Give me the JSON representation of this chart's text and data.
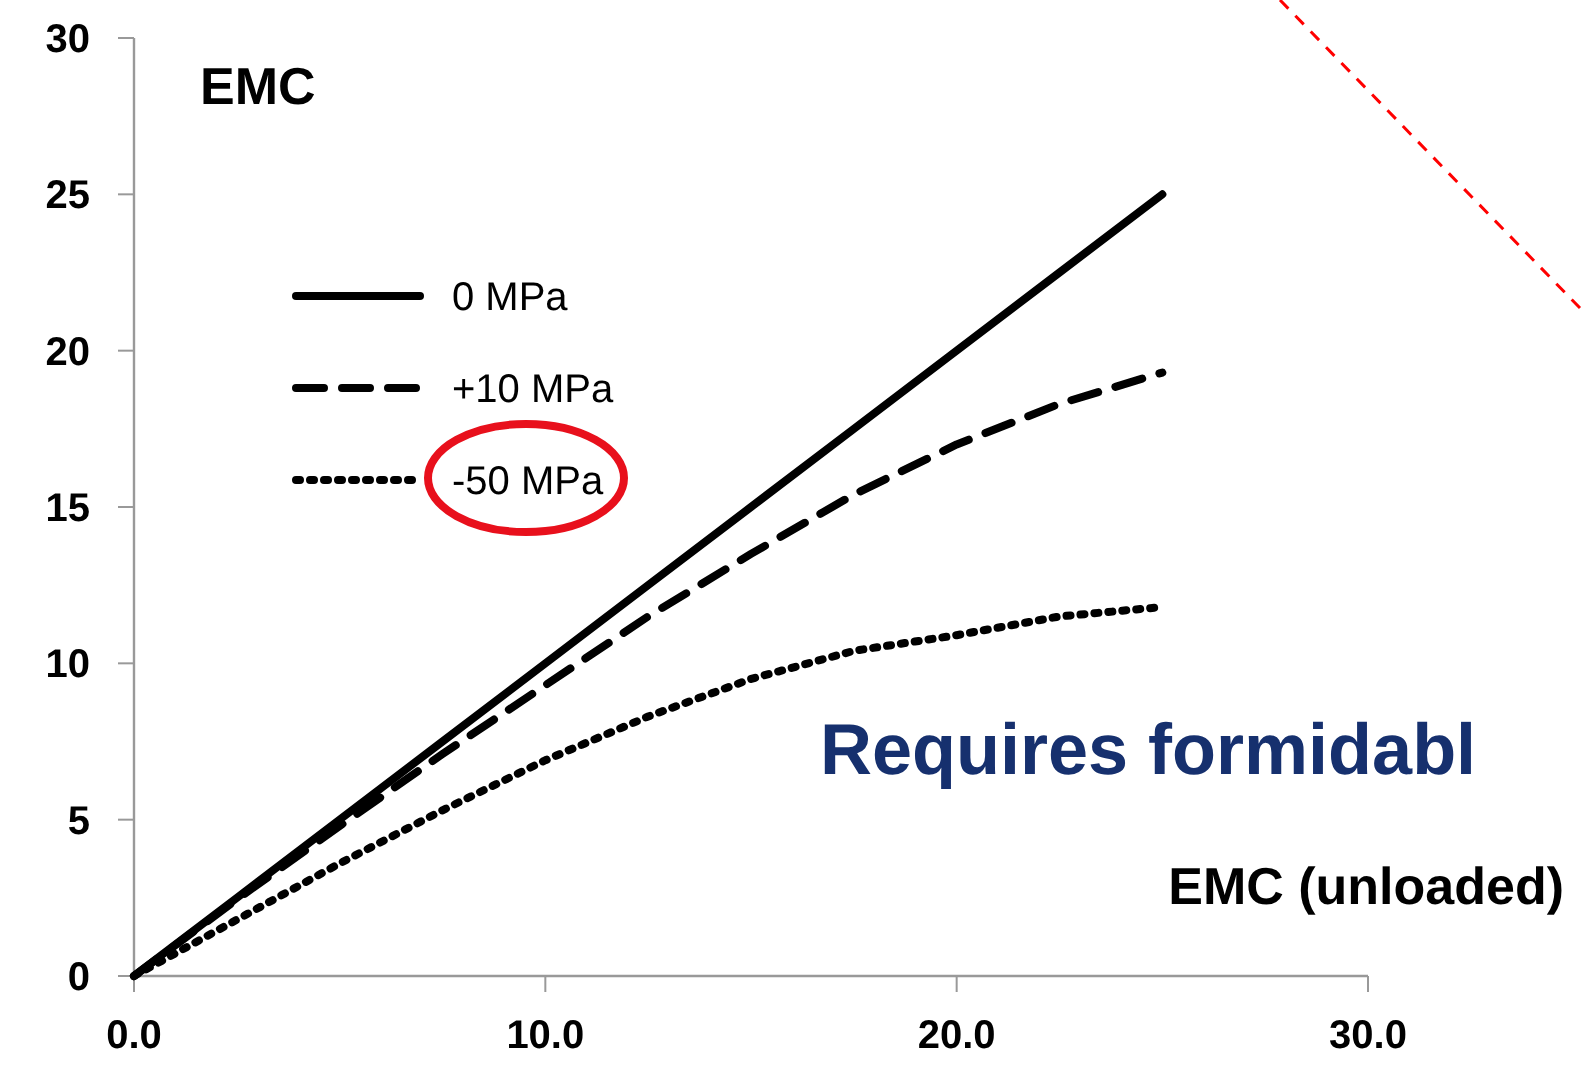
{
  "chart_data": {
    "type": "line",
    "xlabel": "EMC (unloaded)",
    "ylabel": "EMC",
    "annotations": [
      "Requires formidabl"
    ],
    "x": [
      0,
      2.5,
      5,
      7.5,
      10,
      12.5,
      15,
      17.5,
      20,
      22.5,
      25
    ],
    "series": [
      {
        "name": "0 MPa",
        "color": "#000000",
        "line_style": "solid",
        "values": [
          0,
          2.5,
          5,
          7.5,
          10,
          12.5,
          15,
          17.5,
          20,
          22.5,
          25
        ]
      },
      {
        "name": "+10 MPa",
        "color": "#000000",
        "line_style": "dashed",
        "values": [
          0,
          2.45,
          4.8,
          7.1,
          9.3,
          11.5,
          13.5,
          15.4,
          17.0,
          18.3,
          19.3
        ]
      },
      {
        "name": "-50 MPa",
        "color": "#000000",
        "line_style": "dotted",
        "values": [
          0,
          1.8,
          3.6,
          5.3,
          6.9,
          8.3,
          9.5,
          10.4,
          10.9,
          11.5,
          11.8
        ]
      }
    ],
    "xlim": [
      0,
      30
    ],
    "xticks": [
      {
        "value": 0,
        "label": "0.0"
      },
      {
        "value": 10,
        "label": "10.0"
      },
      {
        "value": 20,
        "label": "20.0"
      },
      {
        "value": 30,
        "label": "30.0"
      }
    ],
    "ylim": [
      0,
      30
    ],
    "yticks": [
      0,
      5,
      10,
      15,
      20,
      25,
      30
    ],
    "grid": false,
    "legend": "top left"
  }
}
